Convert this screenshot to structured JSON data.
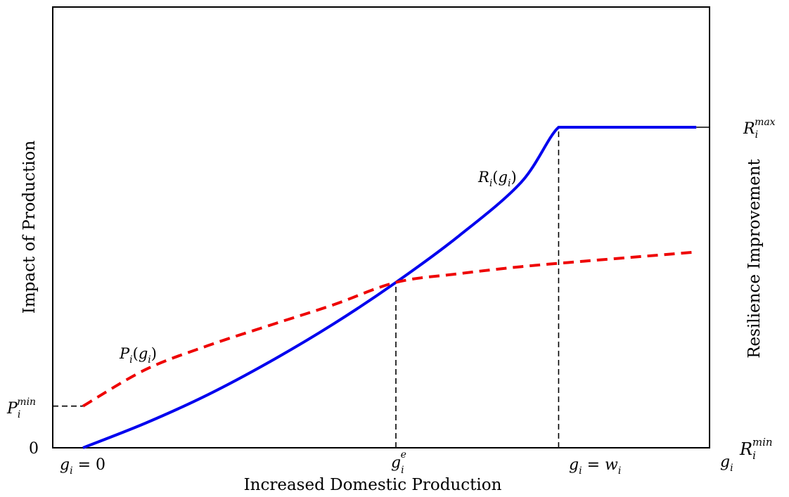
{
  "chart_data": {
    "type": "line",
    "xlabel": "Increased Domestic Production",
    "ylabel_left": "Impact of Production",
    "ylabel_right": "Resilience Improvement",
    "xlim": [
      0,
      1
    ],
    "ylim": [
      0,
      1
    ],
    "grid": false,
    "legend": "none",
    "x_ticks": [
      {
        "x": 0.0,
        "label": "g_i = 0"
      },
      {
        "x": 0.5,
        "label": "g_i^e"
      },
      {
        "x": 0.76,
        "label": "g_i = w_i"
      },
      {
        "x": 0.98,
        "label": "g_i"
      }
    ],
    "left_ticks": [
      {
        "y": 0.0,
        "label": "0"
      },
      {
        "y": 0.13,
        "label": "P_i^min"
      }
    ],
    "right_ticks": [
      {
        "y": 0.0,
        "label": "R_i^min"
      },
      {
        "y": 1.0,
        "label": "R_i^max"
      }
    ],
    "series": [
      {
        "name": "R_i(g_i)",
        "style": "solid",
        "color": "#0000ee",
        "x": [
          0,
          0.1,
          0.2,
          0.3,
          0.4,
          0.5,
          0.6,
          0.7,
          0.76,
          0.8,
          0.9,
          0.98
        ],
        "y": [
          0,
          0.077,
          0.166,
          0.27,
          0.386,
          0.516,
          0.66,
          0.828,
          1.0,
          1.0,
          1.0,
          1.0
        ]
      },
      {
        "name": "P_i(g_i)",
        "style": "dashed",
        "color": "#ee0000",
        "x": [
          0,
          0.1,
          0.2,
          0.3,
          0.4,
          0.5,
          0.6,
          0.7,
          0.8,
          0.9,
          0.98
        ],
        "y": [
          0.13,
          0.244,
          0.319,
          0.383,
          0.446,
          0.516,
          0.543,
          0.565,
          0.582,
          0.598,
          0.611
        ]
      }
    ],
    "guides": [
      {
        "from": "x",
        "x": 0.5,
        "y": 0.516,
        "style": "dashed"
      },
      {
        "from": "x",
        "x": 0.76,
        "y": 1.0,
        "style": "dashed"
      },
      {
        "from": "left",
        "x": 0.0,
        "y": 0.13,
        "style": "dashed"
      },
      {
        "from": "right",
        "x": 0.98,
        "y": 1.0,
        "style": "solid"
      }
    ]
  }
}
